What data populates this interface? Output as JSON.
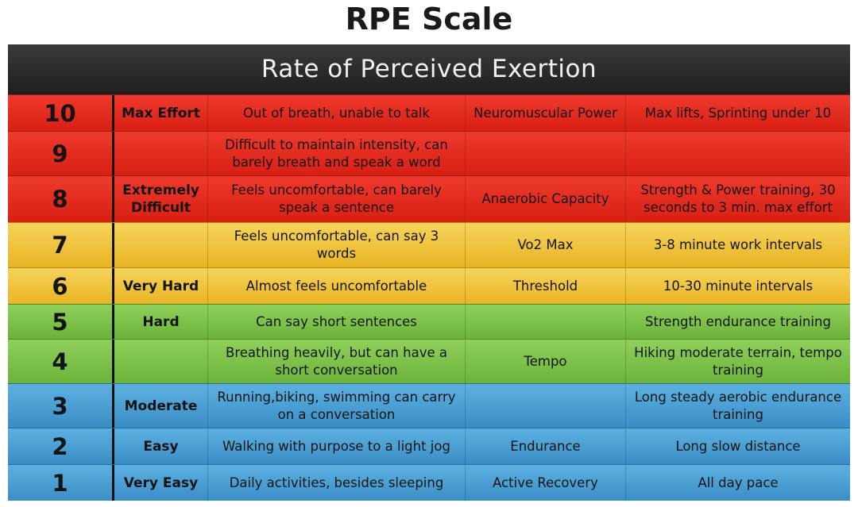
{
  "title": "RPE Scale",
  "header": "Rate of Perceived Exertion",
  "rows": [
    {
      "num": "10",
      "label": "Max Effort",
      "desc": "Out of breath, unable to talk",
      "zone": "Neuromuscular Power",
      "training": "Max lifts, Sprinting under 10"
    },
    {
      "num": "9",
      "label": "",
      "desc": "Difficult to maintain intensity, can barely breath and speak a word",
      "zone": "",
      "training": ""
    },
    {
      "num": "8",
      "label": "Extremely Difficult",
      "desc": "Feels uncomfortable, can barely speak a sentence",
      "zone": "Anaerobic Capacity",
      "training": "Strength & Power training, 30 seconds to 3 min. max effort"
    },
    {
      "num": "7",
      "label": "",
      "desc": "Feels uncomfortable, can say 3 words",
      "zone": "Vo2 Max",
      "training": "3-8 minute work intervals"
    },
    {
      "num": "6",
      "label": "Very Hard",
      "desc": "Almost feels uncomfortable",
      "zone": "Threshold",
      "training": "10-30 minute intervals"
    },
    {
      "num": "5",
      "label": "Hard",
      "desc": "Can say short sentences",
      "zone": "",
      "training": "Strength endurance training"
    },
    {
      "num": "4",
      "label": "",
      "desc": "Breathing heavily, but can have a short conversation",
      "zone": "Tempo",
      "training": "Hiking moderate terrain, tempo training"
    },
    {
      "num": "3",
      "label": "Moderate",
      "desc": "Running,biking, swimming can carry on a conversation",
      "zone": "",
      "training": "Long steady aerobic endurance training"
    },
    {
      "num": "2",
      "label": "Easy",
      "desc": "Walking with purpose to a light jog",
      "zone": "Endurance",
      "training": "Long slow distance"
    },
    {
      "num": "1",
      "label": "Very Easy",
      "desc": "Daily activities, besides sleeping",
      "zone": "Active Recovery",
      "training": "All day pace"
    }
  ]
}
